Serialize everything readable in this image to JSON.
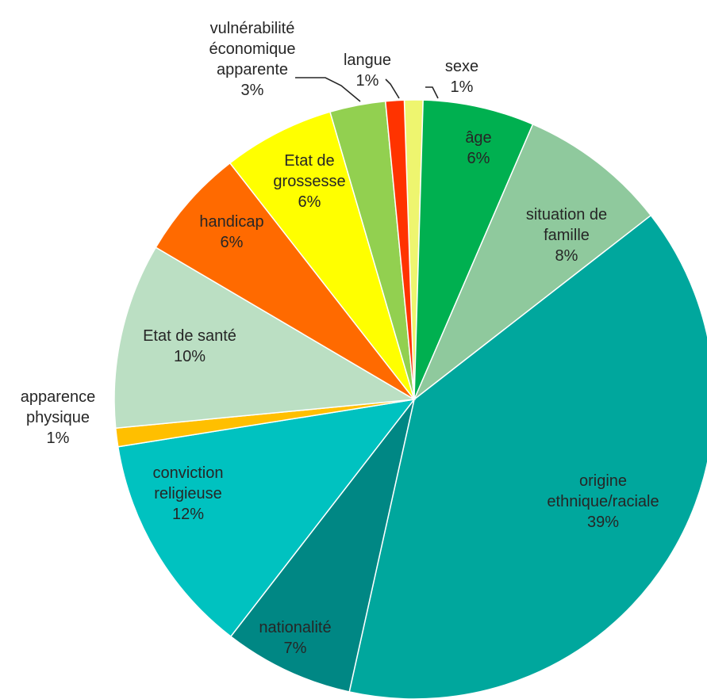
{
  "chart_data": {
    "type": "pie",
    "title": "",
    "unit": "%",
    "slices": [
      {
        "label": "sexe",
        "value": 1,
        "value_label": "1%",
        "color": "#EEF56F"
      },
      {
        "label": "âge",
        "value": 6,
        "value_label": "6%",
        "color": "#00B050"
      },
      {
        "label": "situation de famille",
        "value": 8,
        "value_label": "8%",
        "color": "#8FC99D"
      },
      {
        "label": "origine ethnique/raciale",
        "value": 39,
        "value_label": "39%",
        "color": "#00A79D"
      },
      {
        "label": "nationalité",
        "value": 7,
        "value_label": "7%",
        "color": "#008784"
      },
      {
        "label": "conviction religieuse",
        "value": 12,
        "value_label": "12%",
        "color": "#00C2C0"
      },
      {
        "label": "apparence physique",
        "value": 1,
        "value_label": "1%",
        "color": "#FFBF00"
      },
      {
        "label": "Etat de santé",
        "value": 10,
        "value_label": "10%",
        "color": "#BBDFC3"
      },
      {
        "label": "handicap",
        "value": 6,
        "value_label": "6%",
        "color": "#FF6A00"
      },
      {
        "label": "Etat de grossesse",
        "value": 6,
        "value_label": "6%",
        "color": "#FFFF00"
      },
      {
        "label": "vulnérabilité économique apparente",
        "value": 3,
        "value_label": "3%",
        "color": "#92D050"
      },
      {
        "label": "langue",
        "value": 1,
        "value_label": "1%",
        "color": "#FF3300"
      }
    ],
    "start_angle_deg": -1.9,
    "direction": "clockwise",
    "legend": "none"
  }
}
